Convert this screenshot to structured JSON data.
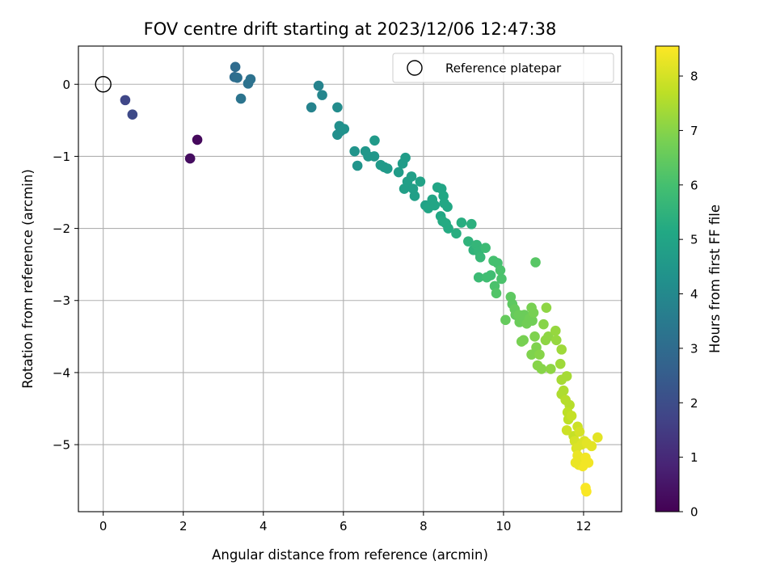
{
  "chart_data": {
    "type": "scatter",
    "title": "FOV centre drift starting at 2023/12/06 12:47:38",
    "xlabel": "Angular distance from reference (arcmin)",
    "ylabel": "Rotation from reference (arcmin)",
    "xlim": [
      -0.62,
      12.95
    ],
    "ylim": [
      -5.93,
      0.53
    ],
    "xticks": [
      0,
      2,
      4,
      6,
      8,
      10,
      12
    ],
    "yticks": [
      0,
      -1,
      -2,
      -3,
      -4,
      -5
    ],
    "grid": true,
    "legend": {
      "position": "top-right",
      "entries": [
        "Reference platepar"
      ]
    },
    "reference_point": {
      "x": 0,
      "y": 0,
      "label": "Reference platepar"
    },
    "colorbar": {
      "label": "Hours from first FF file",
      "colormap": "viridis",
      "range": [
        0,
        8.55
      ],
      "ticks": [
        0,
        1,
        2,
        3,
        4,
        5,
        6,
        7,
        8
      ]
    },
    "points": [
      [
        2.35,
        -0.77,
        0.2
      ],
      [
        2.17,
        -1.03,
        0.3
      ],
      [
        0.55,
        -0.22,
        1.8
      ],
      [
        0.73,
        -0.42,
        1.9
      ],
      [
        3.3,
        0.24,
        3.0
      ],
      [
        3.28,
        0.1,
        3.0
      ],
      [
        3.35,
        0.09,
        3.1
      ],
      [
        3.62,
        0.01,
        3.2
      ],
      [
        3.68,
        0.07,
        3.2
      ],
      [
        3.44,
        -0.2,
        3.3
      ],
      [
        5.2,
        -0.32,
        3.8
      ],
      [
        5.38,
        -0.02,
        3.8
      ],
      [
        5.47,
        -0.15,
        3.9
      ],
      [
        5.85,
        -0.32,
        4.1
      ],
      [
        5.9,
        -0.58,
        4.2
      ],
      [
        5.85,
        -0.7,
        4.2
      ],
      [
        5.93,
        -0.65,
        4.2
      ],
      [
        6.02,
        -0.62,
        4.3
      ],
      [
        6.28,
        -0.93,
        4.4
      ],
      [
        6.35,
        -1.13,
        4.4
      ],
      [
        6.55,
        -0.93,
        4.5
      ],
      [
        6.62,
        -1.0,
        4.5
      ],
      [
        6.77,
        -1.0,
        4.5
      ],
      [
        6.78,
        -0.78,
        4.6
      ],
      [
        6.93,
        -1.12,
        4.6
      ],
      [
        7.02,
        -1.15,
        4.6
      ],
      [
        7.1,
        -1.17,
        4.6
      ],
      [
        7.38,
        -1.22,
        4.7
      ],
      [
        7.48,
        -1.1,
        4.7
      ],
      [
        7.55,
        -1.02,
        4.7
      ],
      [
        7.52,
        -1.45,
        4.8
      ],
      [
        7.6,
        -1.35,
        4.8
      ],
      [
        7.7,
        -1.28,
        4.8
      ],
      [
        7.74,
        -1.45,
        4.8
      ],
      [
        7.78,
        -1.55,
        4.8
      ],
      [
        7.92,
        -1.35,
        4.9
      ],
      [
        8.05,
        -1.68,
        4.9
      ],
      [
        8.12,
        -1.72,
        5.0
      ],
      [
        8.22,
        -1.6,
        5.0
      ],
      [
        8.28,
        -1.68,
        5.0
      ],
      [
        8.35,
        -1.43,
        5.0
      ],
      [
        8.45,
        -1.45,
        5.0
      ],
      [
        8.5,
        -1.55,
        5.1
      ],
      [
        8.52,
        -1.65,
        5.1
      ],
      [
        8.6,
        -1.7,
        5.1
      ],
      [
        8.43,
        -1.83,
        5.1
      ],
      [
        8.48,
        -1.9,
        5.2
      ],
      [
        8.56,
        -1.93,
        5.2
      ],
      [
        8.62,
        -2.0,
        5.2
      ],
      [
        8.82,
        -2.07,
        5.3
      ],
      [
        8.95,
        -1.92,
        5.3
      ],
      [
        9.2,
        -1.94,
        5.4
      ],
      [
        9.12,
        -2.18,
        5.5
      ],
      [
        9.25,
        -2.3,
        5.5
      ],
      [
        9.33,
        -2.23,
        5.6
      ],
      [
        9.38,
        -2.32,
        5.6
      ],
      [
        9.42,
        -2.4,
        5.7
      ],
      [
        9.55,
        -2.27,
        5.8
      ],
      [
        9.38,
        -2.68,
        5.8
      ],
      [
        9.58,
        -2.68,
        5.9
      ],
      [
        9.68,
        -2.65,
        5.9
      ],
      [
        9.75,
        -2.45,
        6.0
      ],
      [
        9.85,
        -2.48,
        6.0
      ],
      [
        9.92,
        -2.58,
        6.1
      ],
      [
        9.95,
        -2.7,
        6.1
      ],
      [
        9.78,
        -2.8,
        6.1
      ],
      [
        9.82,
        -2.9,
        6.2
      ],
      [
        10.18,
        -2.95,
        6.4
      ],
      [
        10.22,
        -3.05,
        6.4
      ],
      [
        10.05,
        -3.27,
        6.5
      ],
      [
        10.28,
        -3.12,
        6.5
      ],
      [
        10.3,
        -3.2,
        6.5
      ],
      [
        10.4,
        -3.3,
        6.6
      ],
      [
        10.38,
        -3.2,
        6.6
      ],
      [
        10.5,
        -3.28,
        6.6
      ],
      [
        10.52,
        -3.2,
        6.6
      ],
      [
        10.58,
        -3.32,
        6.7
      ],
      [
        10.65,
        -3.25,
        6.7
      ],
      [
        10.72,
        -3.28,
        6.7
      ],
      [
        10.7,
        -3.1,
        6.8
      ],
      [
        10.75,
        -3.17,
        6.8
      ],
      [
        10.8,
        -2.47,
        6.3
      ],
      [
        10.45,
        -3.57,
        6.8
      ],
      [
        10.5,
        -3.55,
        6.8
      ],
      [
        10.7,
        -3.75,
        6.9
      ],
      [
        10.78,
        -3.5,
        6.9
      ],
      [
        10.82,
        -3.65,
        6.9
      ],
      [
        10.9,
        -3.75,
        7.0
      ],
      [
        10.85,
        -3.9,
        7.0
      ],
      [
        10.95,
        -3.95,
        7.0
      ],
      [
        11.0,
        -3.33,
        7.0
      ],
      [
        11.05,
        -3.55,
        7.1
      ],
      [
        11.07,
        -3.1,
        7.1
      ],
      [
        11.12,
        -3.5,
        7.1
      ],
      [
        11.18,
        -3.95,
        7.1
      ],
      [
        11.3,
        -3.42,
        7.2
      ],
      [
        11.32,
        -3.55,
        7.2
      ],
      [
        11.45,
        -3.68,
        7.3
      ],
      [
        11.42,
        -3.88,
        7.3
      ],
      [
        11.45,
        -4.1,
        7.4
      ],
      [
        11.58,
        -4.05,
        7.4
      ],
      [
        11.5,
        -4.25,
        7.5
      ],
      [
        11.45,
        -4.3,
        7.5
      ],
      [
        11.55,
        -4.38,
        7.6
      ],
      [
        11.65,
        -4.45,
        7.6
      ],
      [
        11.6,
        -4.55,
        7.7
      ],
      [
        11.62,
        -4.65,
        7.7
      ],
      [
        11.7,
        -4.6,
        7.8
      ],
      [
        11.75,
        -4.88,
        7.8
      ],
      [
        11.58,
        -4.8,
        7.9
      ],
      [
        11.85,
        -4.75,
        7.9
      ],
      [
        11.9,
        -4.82,
        8.0
      ],
      [
        11.78,
        -4.95,
        8.0
      ],
      [
        11.82,
        -5.05,
        8.1
      ],
      [
        11.95,
        -5.0,
        8.1
      ],
      [
        12.02,
        -4.95,
        8.1
      ],
      [
        12.08,
        -4.98,
        8.2
      ],
      [
        12.2,
        -5.02,
        8.2
      ],
      [
        12.35,
        -4.9,
        8.2
      ],
      [
        11.85,
        -5.15,
        8.3
      ],
      [
        11.92,
        -5.2,
        8.3
      ],
      [
        11.88,
        -5.28,
        8.3
      ],
      [
        11.98,
        -5.3,
        8.4
      ],
      [
        12.05,
        -5.18,
        8.4
      ],
      [
        12.12,
        -5.25,
        8.4
      ],
      [
        11.8,
        -5.25,
        8.3
      ],
      [
        12.05,
        -5.6,
        8.5
      ],
      [
        12.07,
        -5.65,
        8.5
      ]
    ]
  }
}
